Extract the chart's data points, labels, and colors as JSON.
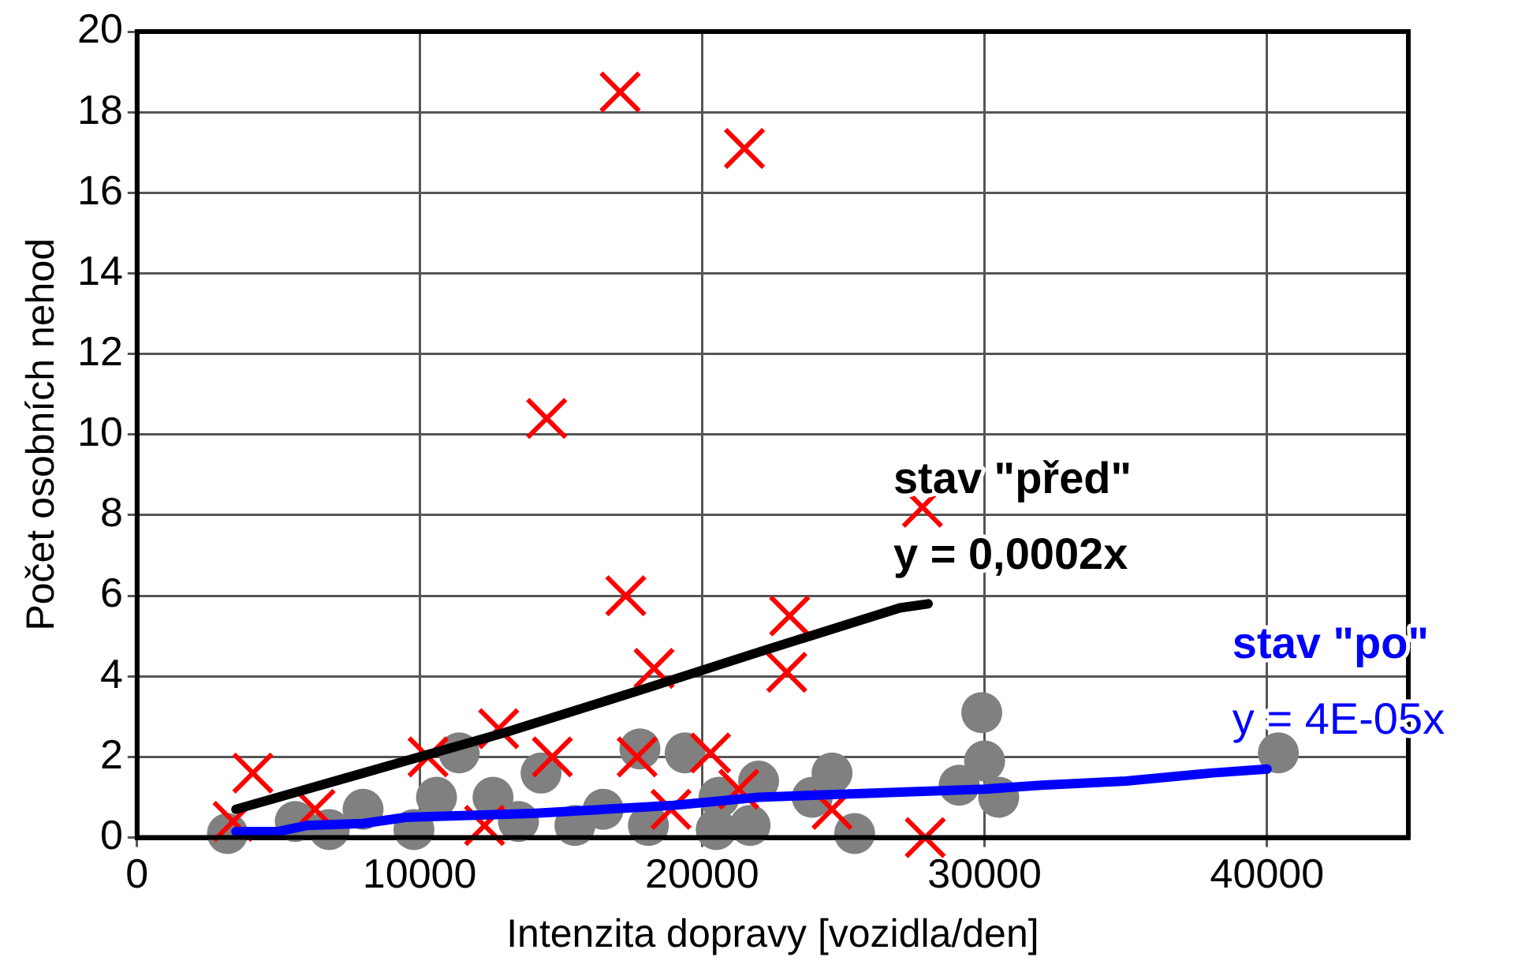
{
  "chart_data": {
    "type": "scatter",
    "xlabel": "Intenzita dopravy [vozidla/den]",
    "ylabel": "Počet osobních nehod",
    "xlim": [
      0,
      45000
    ],
    "xticks": [
      0,
      10000,
      20000,
      30000,
      40000
    ],
    "ylim": [
      0,
      20
    ],
    "yticks": [
      0,
      2,
      4,
      6,
      8,
      10,
      12,
      14,
      16,
      18,
      20
    ],
    "grid": true,
    "legend": false,
    "series": [
      {
        "marker": "cross",
        "color": "#ff0000",
        "x": [
          17100,
          21500,
          14500,
          27800,
          17300,
          23100,
          18300,
          23000,
          4100,
          27900,
          12800,
          10300,
          20300,
          14700,
          17700,
          3400,
          6300,
          12300,
          18900,
          21300,
          24600
        ],
        "values": [
          18.5,
          17.1,
          10.4,
          8.2,
          6.0,
          5.5,
          4.2,
          4.1,
          1.6,
          0,
          2.7,
          2.0,
          2.1,
          2.0,
          2.0,
          0.4,
          0.7,
          0.3,
          0.7,
          1.2,
          0.7
        ]
      },
      {
        "marker": "circle",
        "color": "#808080",
        "x": [
          3200,
          5600,
          6800,
          8000,
          9800,
          10600,
          11400,
          12600,
          14300,
          13500,
          17800,
          19400,
          20600,
          22000,
          24600,
          23900,
          25400,
          29900,
          30000,
          29100,
          30500,
          18100,
          20500,
          21700,
          15500,
          16500,
          40400
        ],
        "values": [
          0.1,
          0.4,
          0.2,
          0.7,
          0.2,
          1.0,
          2.1,
          1.0,
          1.6,
          0.4,
          2.2,
          2.1,
          1.0,
          1.4,
          1.6,
          1.0,
          0.1,
          3.1,
          1.9,
          1.3,
          1.0,
          0.3,
          0.2,
          0.3,
          0.3,
          0.7,
          2.1
        ]
      },
      {
        "type": "line",
        "name": "stav \"před\"",
        "color": "#000000",
        "x": [
          3500,
          8000,
          13000,
          18000,
          22000,
          27000,
          28000
        ],
        "values": [
          0.7,
          1.6,
          2.6,
          3.7,
          4.6,
          5.7,
          5.8
        ]
      },
      {
        "type": "line",
        "name": "stav \"po\"",
        "color": "#0000ff",
        "x": [
          3500,
          5000,
          6000,
          8000,
          9500,
          14000,
          19000,
          22000,
          30000,
          32000,
          35000,
          38000,
          40000
        ],
        "values": [
          0.15,
          0.15,
          0.3,
          0.35,
          0.5,
          0.6,
          0.8,
          1.0,
          1.2,
          1.3,
          1.4,
          1.6,
          1.7
        ]
      }
    ],
    "annotations": [
      "y = 0,0002x",
      "y = 4E-05x"
    ]
  }
}
